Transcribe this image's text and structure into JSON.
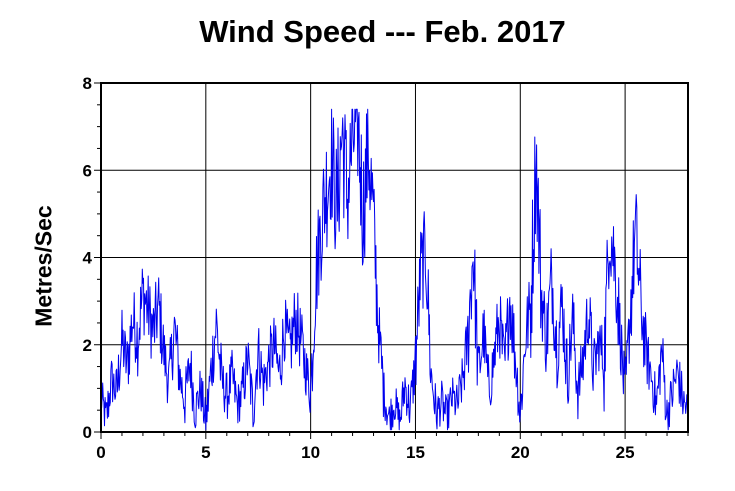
{
  "chart_data": {
    "type": "line",
    "title": "Wind Speed --- Feb. 2017",
    "xlabel": "",
    "ylabel": "Metres/Sec",
    "xlim": [
      0,
      28
    ],
    "ylim": [
      0,
      8
    ],
    "x_ticks": [
      "0",
      "5",
      "10",
      "15",
      "20",
      "25"
    ],
    "y_ticks": [
      "0",
      "2",
      "4",
      "6",
      "8"
    ],
    "grid": true,
    "line_color": "#0000ee",
    "series": [
      {
        "x": [
          0,
          0.25,
          0.5,
          0.75,
          1,
          1.25,
          1.5,
          1.75,
          2,
          2.25,
          2.5,
          2.75,
          3,
          3.25,
          3.5,
          3.75,
          4,
          4.25,
          4.5,
          4.75,
          5,
          5.25,
          5.5,
          5.75,
          6,
          6.25,
          6.5,
          6.75,
          7,
          7.25,
          7.5,
          7.75,
          8,
          8.25,
          8.5,
          8.75,
          9,
          9.25,
          9.5,
          9.75,
          10,
          10.25,
          10.5,
          10.75,
          11,
          11.25,
          11.5,
          11.75,
          12,
          12.25,
          12.5,
          12.75,
          13,
          13.25,
          13.5,
          13.75,
          14,
          14.25,
          14.5,
          14.75,
          15,
          15.25,
          15.5,
          15.75,
          16,
          16.25,
          16.5,
          16.75,
          17,
          17.25,
          17.5,
          17.75,
          18,
          18.25,
          18.5,
          18.75,
          19,
          19.25,
          19.5,
          19.75,
          20,
          20.25,
          20.5,
          20.75,
          21,
          21.25,
          21.5,
          21.75,
          22,
          22.25,
          22.5,
          22.75,
          23,
          23.25,
          23.5,
          23.75,
          24,
          24.25,
          24.5,
          24.75,
          25,
          25.25,
          25.5,
          25.75,
          26,
          26.25,
          26.5,
          26.75,
          27,
          27.25,
          27.5,
          27.75,
          28
        ],
        "values": [
          0.8,
          0.3,
          1.2,
          0.9,
          2.1,
          1.5,
          2.6,
          2.2,
          3.2,
          2.8,
          2.3,
          2.9,
          1.8,
          1.1,
          2.4,
          1.3,
          0.7,
          1.6,
          0.5,
          1.0,
          0.2,
          1.4,
          2.5,
          1.2,
          0.8,
          1.3,
          0.6,
          0.9,
          1.7,
          0.5,
          1.9,
          1.1,
          1.6,
          2.0,
          1.3,
          2.4,
          1.8,
          2.6,
          2.2,
          1.5,
          0.9,
          3.5,
          4.8,
          5.6,
          6.3,
          5.1,
          6.9,
          5.4,
          6.7,
          7.1,
          5.0,
          6.6,
          4.8,
          2.3,
          0.9,
          0.3,
          0.7,
          0.2,
          1.1,
          0.5,
          1.6,
          3.7,
          4.1,
          1.3,
          0.4,
          0.7,
          0.3,
          0.8,
          0.6,
          1.2,
          2.1,
          4.2,
          1.3,
          2.3,
          0.9,
          1.7,
          2.6,
          1.4,
          3.1,
          1.8,
          0.4,
          2.2,
          2.9,
          6.4,
          3.2,
          2.1,
          3.6,
          1.9,
          3.0,
          1.2,
          2.6,
          0.9,
          1.7,
          2.8,
          1.4,
          2.1,
          1.6,
          4.8,
          3.9,
          2.4,
          0.7,
          2.8,
          4.6,
          2.9,
          1.8,
          1.3,
          0.6,
          1.9,
          0.4,
          0.9,
          1.4,
          0.7,
          0.5
        ]
      }
    ]
  }
}
